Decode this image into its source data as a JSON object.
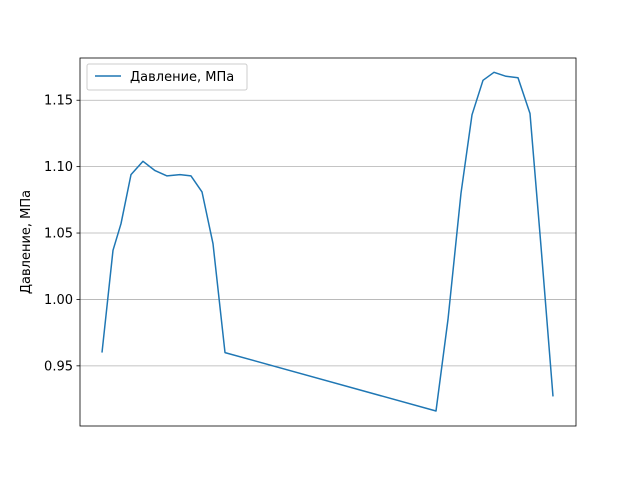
{
  "chart_data": {
    "type": "line",
    "title": "",
    "xlabel": "",
    "ylabel": "Давление, МПа",
    "ylim": [
      0.9047,
      1.1818
    ],
    "yticks": [
      0.95,
      1.0,
      1.05,
      1.1,
      1.15
    ],
    "ytick_labels": [
      "0.95",
      "1.00",
      "1.05",
      "1.10",
      "1.15"
    ],
    "x_ticks_visible": false,
    "grid": "horizontal",
    "legend_position": "top-left",
    "colors": {
      "series": "#1f77b4",
      "grid": "#b0b0b0",
      "axes": "#000000"
    },
    "series": [
      {
        "name": "Давление, МПа",
        "x": [
          0,
          1,
          2,
          3,
          4,
          5,
          6,
          7,
          8,
          9,
          10,
          11,
          12,
          13,
          14,
          15,
          16,
          17,
          18,
          19,
          20,
          21,
          22
        ],
        "values": [
          0.96,
          1.037,
          1.094,
          1.104,
          1.097,
          1.093,
          1.094,
          1.093,
          1.081,
          1.042,
          0.96,
          0.916,
          0.985,
          1.08,
          1.139,
          1.165,
          1.171,
          1.168,
          1.167,
          1.14,
          1.04,
          0.927,
          null
        ]
      }
    ]
  }
}
